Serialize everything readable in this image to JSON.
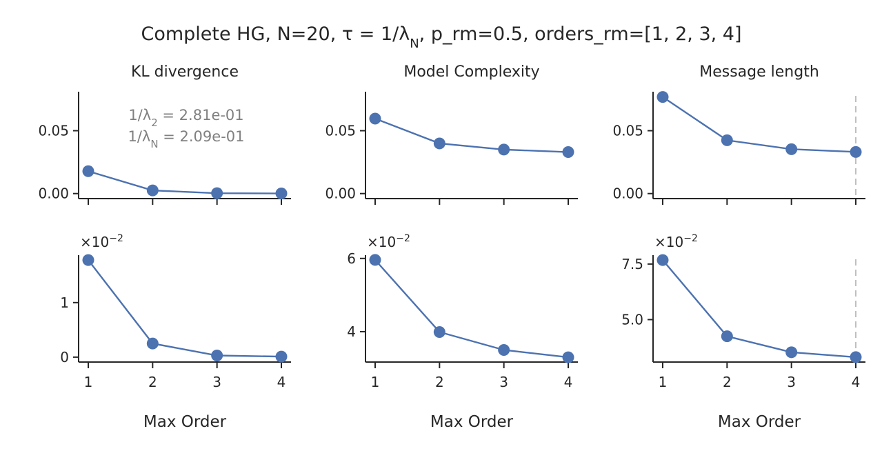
{
  "title": "Complete HG, N=20, τ = 1/λ",
  "title_sub": "N",
  "title_rest": ", p_rm=0.5, orders_rm=[1, 2, 3, 4]",
  "xlabel": "Max Order",
  "annotation": {
    "line1_prefix": "1/λ",
    "line1_sub": "2",
    "line1_value": " = 2.81e-01",
    "line2_prefix": "1/λ",
    "line2_sub": "N",
    "line2_value": " = 2.09e-01"
  },
  "colors": {
    "series": "#4c72b0",
    "vline": "#bfbfbf",
    "annotation": "#808080"
  },
  "chart_data": [
    {
      "type": "line",
      "panel": "top-left",
      "title": "KL divergence",
      "x": [
        1,
        2,
        3,
        4
      ],
      "values": [
        0.0178,
        0.0025,
        0.0003,
        0.0001
      ],
      "ylim": [
        -0.004,
        0.081
      ],
      "yticks": [
        0,
        0.05
      ],
      "ytick_labels": [
        "0.00",
        "0.05"
      ],
      "xticks": [
        1,
        2,
        3,
        4
      ],
      "xtick_labels": []
    },
    {
      "type": "line",
      "panel": "top-middle",
      "title": "Model Complexity",
      "x": [
        1,
        2,
        3,
        4
      ],
      "values": [
        0.0596,
        0.0399,
        0.035,
        0.033
      ],
      "ylim": [
        -0.004,
        0.081
      ],
      "yticks": [
        0,
        0.05
      ],
      "ytick_labels": [
        "0.00",
        "0.05"
      ],
      "xticks": [
        1,
        2,
        3,
        4
      ],
      "xtick_labels": []
    },
    {
      "type": "line",
      "panel": "top-right",
      "title": "Message length",
      "x": [
        1,
        2,
        3,
        4
      ],
      "values": [
        0.0768,
        0.0424,
        0.0353,
        0.0331
      ],
      "ylim": [
        -0.004,
        0.081
      ],
      "yticks": [
        0,
        0.05
      ],
      "ytick_labels": [
        "0.00",
        "0.05"
      ],
      "xticks": [
        1,
        2,
        3,
        4
      ],
      "xtick_labels": [],
      "vline_x": 4
    },
    {
      "type": "line",
      "panel": "bottom-left",
      "title": "",
      "multiplier": "×10",
      "multiplier_exp": "−2",
      "x": [
        1,
        2,
        3,
        4
      ],
      "values": [
        1.78,
        0.25,
        0.03,
        0.01
      ],
      "ylim": [
        -0.09,
        1.87
      ],
      "yticks": [
        0,
        1
      ],
      "ytick_labels": [
        "0",
        "1"
      ],
      "xticks": [
        1,
        2,
        3,
        4
      ],
      "xtick_labels": [
        "1",
        "2",
        "3",
        "4"
      ]
    },
    {
      "type": "line",
      "panel": "bottom-middle",
      "title": "",
      "multiplier": "×10",
      "multiplier_exp": "−2",
      "x": [
        1,
        2,
        3,
        4
      ],
      "values": [
        5.96,
        3.99,
        3.5,
        3.3
      ],
      "ylim": [
        3.17,
        6.09
      ],
      "yticks": [
        4,
        6
      ],
      "ytick_labels": [
        "4",
        "6"
      ],
      "xticks": [
        1,
        2,
        3,
        4
      ],
      "xtick_labels": [
        "1",
        "2",
        "3",
        "4"
      ]
    },
    {
      "type": "line",
      "panel": "bottom-right",
      "title": "",
      "multiplier": "×10",
      "multiplier_exp": "−2",
      "x": [
        1,
        2,
        3,
        4
      ],
      "values": [
        7.68,
        4.25,
        3.53,
        3.31
      ],
      "ylim": [
        3.09,
        7.9
      ],
      "yticks": [
        5.0,
        7.5
      ],
      "ytick_labels": [
        "5.0",
        "7.5"
      ],
      "xticks": [
        1,
        2,
        3,
        4
      ],
      "xtick_labels": [
        "1",
        "2",
        "3",
        "4"
      ],
      "vline_x": 4
    }
  ]
}
